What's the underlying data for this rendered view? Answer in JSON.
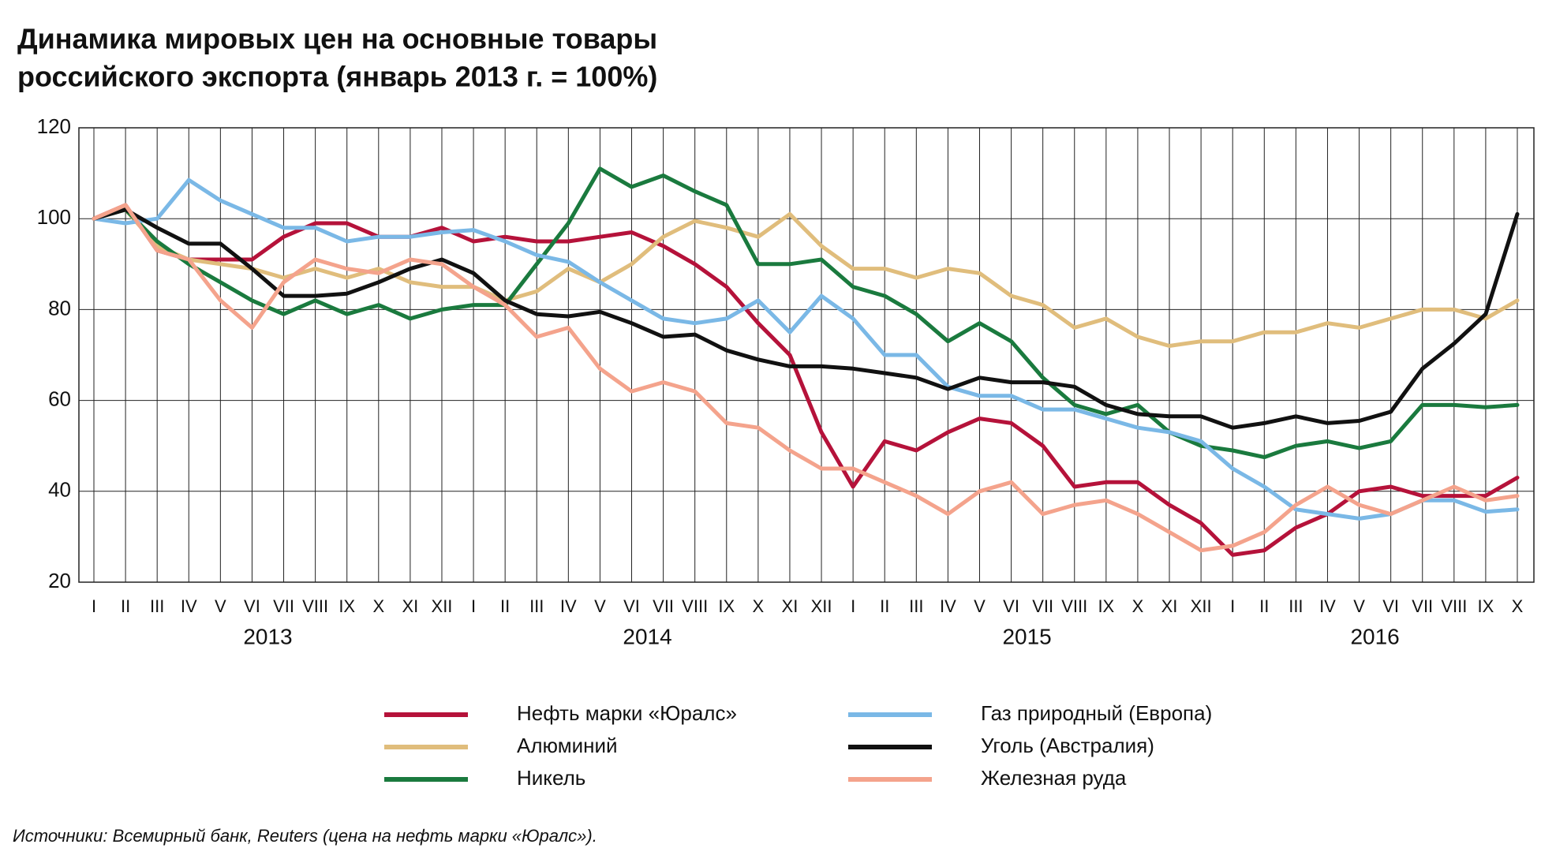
{
  "chart_data": {
    "type": "line",
    "title": "Динамика мировых цен на основные товары",
    "subtitle": "российского экспорта (январь 2013 г. = 100%)",
    "categories": [
      "I",
      "II",
      "III",
      "IV",
      "V",
      "VI",
      "VII",
      "VIII",
      "IX",
      "X",
      "XI",
      "XII",
      "I",
      "II",
      "III",
      "IV",
      "V",
      "VI",
      "VII",
      "VIII",
      "IX",
      "X",
      "XI",
      "XII",
      "I",
      "II",
      "III",
      "IV",
      "V",
      "VI",
      "VII",
      "VIII",
      "IX",
      "X",
      "XI",
      "XII",
      "I",
      "II",
      "III",
      "IV",
      "V",
      "VI",
      "VII",
      "VIII",
      "IX",
      "X"
    ],
    "year_labels": [
      "2013",
      "2014",
      "2015",
      "2016"
    ],
    "ylim": [
      20,
      120
    ],
    "yticks": [
      20,
      40,
      60,
      80,
      100,
      120
    ],
    "grid": true,
    "series": [
      {
        "name": "Нефть марки «Юралс»",
        "color": "#b5123a",
        "values": [
          100,
          103,
          93,
          91,
          91,
          91,
          96,
          99,
          99,
          96,
          96,
          98,
          95,
          96,
          95,
          95,
          96,
          97,
          94,
          90,
          85,
          77,
          70,
          53,
          41,
          51,
          49,
          53,
          56,
          55,
          50,
          41,
          42,
          42,
          37,
          33,
          26,
          27,
          32,
          35,
          40,
          41,
          39,
          39,
          39,
          43
        ]
      },
      {
        "name": "Алюминий",
        "color": "#e0bd7c",
        "values": [
          100,
          102,
          94,
          91,
          90,
          89,
          87,
          89,
          87,
          89,
          86,
          85,
          85,
          82,
          84,
          89,
          86,
          90,
          96,
          99.5,
          98,
          96,
          101,
          94,
          89,
          89,
          87,
          89,
          88,
          83,
          81,
          76,
          78,
          74,
          72,
          73,
          73,
          75,
          75,
          77,
          76,
          78,
          80,
          80,
          78,
          82
        ]
      },
      {
        "name": "Никель",
        "color": "#1a7a3e",
        "values": [
          100,
          102,
          95,
          90,
          86,
          82,
          79,
          82,
          79,
          81,
          78,
          80,
          81,
          81,
          90,
          99,
          111,
          107,
          109.5,
          106,
          103,
          90,
          90,
          91,
          85,
          83,
          79,
          73,
          77,
          73,
          65,
          59,
          57,
          59,
          53,
          50,
          49,
          47.5,
          50,
          51,
          49.5,
          51,
          59,
          59,
          58.5,
          59
        ]
      },
      {
        "name": "Газ природный (Европа)",
        "color": "#7ab8e6",
        "values": [
          100,
          99,
          100,
          108.5,
          104,
          101,
          98,
          98,
          95,
          96,
          96,
          97,
          97.5,
          95,
          92,
          90.5,
          86,
          82,
          78,
          77,
          78,
          82,
          75,
          83,
          78,
          70,
          70,
          63,
          61,
          61,
          58,
          58,
          56,
          54,
          53,
          51,
          45,
          41,
          36,
          35,
          34,
          35,
          38,
          38,
          35.5,
          36
        ]
      },
      {
        "name": "Уголь (Австралия)",
        "color": "#111111",
        "values": [
          100,
          102,
          98,
          94.5,
          94.5,
          89,
          83,
          83,
          83.5,
          86,
          89,
          91,
          88,
          82,
          79,
          78.5,
          79.5,
          77,
          74,
          74.5,
          71,
          69,
          67.5,
          67.5,
          67,
          66,
          65,
          62.5,
          65,
          64,
          64,
          63,
          59,
          57,
          56.5,
          56.5,
          54,
          55,
          56.5,
          55,
          55.5,
          57.5,
          67,
          72.5,
          79,
          101
        ]
      },
      {
        "name": "Железная руда",
        "color": "#f4a38c",
        "values": [
          100,
          103,
          93,
          91,
          82,
          76,
          86,
          91,
          89,
          88,
          91,
          90,
          85,
          81,
          74,
          76,
          67,
          62,
          64,
          62,
          55,
          54,
          49,
          45,
          45,
          42,
          39,
          35,
          40,
          42,
          35,
          37,
          38,
          35,
          31,
          27,
          28,
          31,
          37,
          41,
          37,
          35,
          38,
          41,
          38,
          39
        ]
      }
    ],
    "source": "Источники: Всемирный банк, Reuters (цена на нефть марки «Юралс»)."
  }
}
